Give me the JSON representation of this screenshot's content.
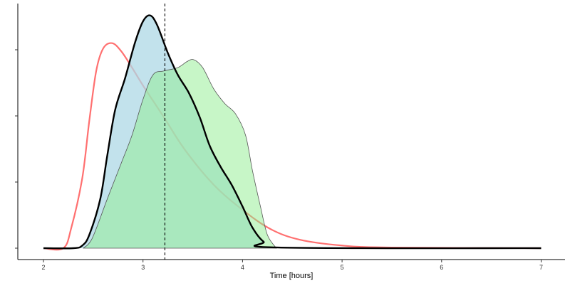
{
  "chart_data": {
    "type": "area",
    "title": "",
    "xlabel": "Time [hours]",
    "ylabel": "",
    "xlim": [
      1.75,
      7.25
    ],
    "ylim": [
      -0.17,
      3.7
    ],
    "x_ticks": [
      2,
      3,
      4,
      5,
      6,
      7
    ],
    "y_ticks": [
      0,
      1,
      2,
      3
    ],
    "y_tick_labels_shown": false,
    "grid": false,
    "legend": "none",
    "vline": {
      "x": 3.22,
      "style": "dashed",
      "color": "#000000"
    },
    "series": [
      {
        "style": "line",
        "color": "#ff7070",
        "x": [
          2.0,
          2.2,
          2.28,
          2.39,
          2.46,
          2.53,
          2.6,
          2.69,
          2.78,
          2.89,
          3.0,
          3.21,
          3.42,
          3.71,
          4.0,
          4.28,
          4.57,
          5.0,
          5.5,
          7.0
        ],
        "y": [
          0,
          0,
          0.31,
          1.06,
          1.92,
          2.68,
          3.02,
          3.1,
          2.98,
          2.73,
          2.46,
          1.98,
          1.49,
          0.96,
          0.58,
          0.29,
          0.13,
          0.04,
          0.01,
          0
        ]
      },
      {
        "style": "filled",
        "fill": "#add8e6",
        "fill_opacity": 0.75,
        "stroke": "#000000",
        "x": [
          2.0,
          2.3,
          2.39,
          2.46,
          2.57,
          2.64,
          2.72,
          2.82,
          2.92,
          3.0,
          3.07,
          3.14,
          3.25,
          3.35,
          3.46,
          3.57,
          3.67,
          3.78,
          3.89,
          4.0,
          4.1,
          4.21,
          4.36,
          7.0
        ],
        "y": [
          0,
          0,
          0.04,
          0.2,
          0.74,
          1.39,
          2.09,
          2.57,
          3.11,
          3.43,
          3.52,
          3.38,
          2.95,
          2.62,
          2.35,
          1.98,
          1.55,
          1.23,
          0.96,
          0.63,
          0.31,
          0.1,
          0.01,
          0
        ]
      },
      {
        "style": "filled",
        "fill": "#90ee90",
        "fill_opacity": 0.5,
        "stroke": "#555555",
        "x": [
          2.4,
          2.49,
          2.64,
          2.78,
          2.89,
          3.0,
          3.1,
          3.21,
          3.35,
          3.44,
          3.51,
          3.6,
          3.71,
          3.82,
          3.93,
          4.03,
          4.1,
          4.18,
          4.25,
          4.34
        ],
        "y": [
          0,
          0.15,
          0.74,
          1.28,
          1.71,
          2.25,
          2.62,
          2.68,
          2.73,
          2.82,
          2.85,
          2.73,
          2.41,
          2.19,
          2.03,
          1.71,
          1.17,
          0.63,
          0.2,
          0
        ]
      }
    ]
  }
}
